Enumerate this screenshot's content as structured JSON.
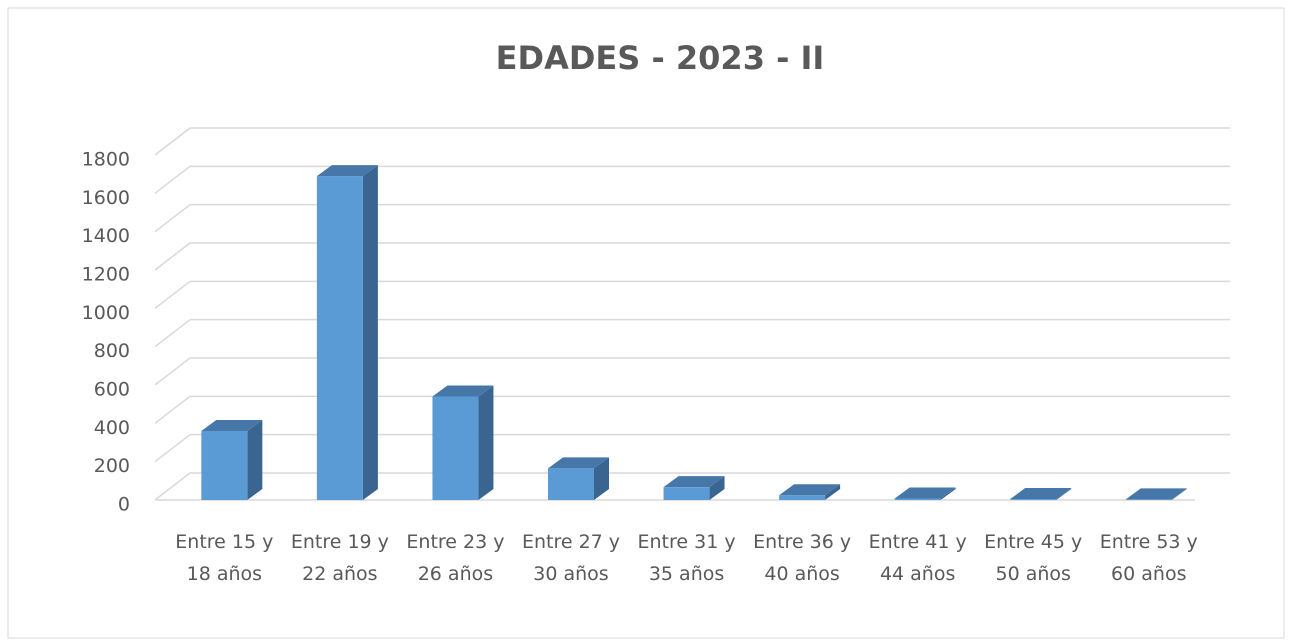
{
  "chart_data": {
    "type": "bar3d",
    "title": "EDADES - 2023 - II",
    "categories": [
      "Entre 15 y 18 años",
      "Entre 19 y 22 años",
      "Entre 23 y 26 años",
      "Entre 27 y 30 años",
      "Entre 31 y 35 años",
      "Entre 36 y 40 años",
      "Entre 41 y 44 años",
      "Entre 45 y 50 años",
      "Entre 53 y 60 años"
    ],
    "values": [
      360,
      1690,
      540,
      165,
      67,
      25,
      8,
      5,
      3
    ],
    "color": "#5b9bd5",
    "ylim": [
      0,
      1800
    ],
    "yticks": [
      0,
      200,
      400,
      600,
      800,
      1000,
      1200,
      1400,
      1600,
      1800
    ],
    "grid": true
  }
}
